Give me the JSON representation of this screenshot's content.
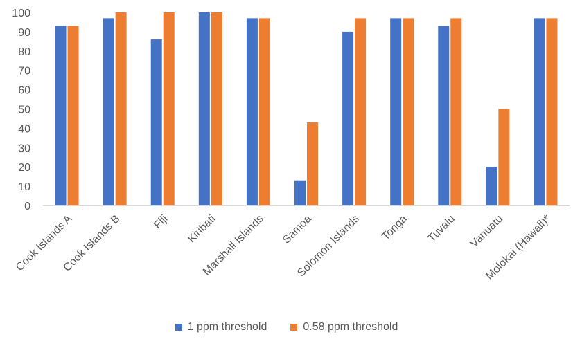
{
  "chart_data": {
    "type": "bar",
    "categories": [
      "Cook Islands A",
      "Cook Islands B",
      "Fiji",
      "Kiribati",
      "Marshall Islands",
      "Samoa",
      "Solomon Islands",
      "Tonga",
      "Tuvalu",
      "Vanuatu",
      "Molokai (Hawaii)*"
    ],
    "series": [
      {
        "name": "1 ppm threshold",
        "color": "#4472C4",
        "values": [
          93,
          97,
          86,
          100,
          97,
          13,
          90,
          97,
          93,
          20,
          97
        ]
      },
      {
        "name": "0.58 ppm threshold",
        "color": "#ED7D31",
        "values": [
          93,
          100,
          100,
          100,
          97,
          43,
          97,
          97,
          97,
          50,
          97
        ]
      }
    ],
    "ylim": [
      0,
      100
    ],
    "yticks": [
      0,
      10,
      20,
      30,
      40,
      50,
      60,
      70,
      80,
      90,
      100
    ],
    "grid": false,
    "legend": "bottom"
  }
}
